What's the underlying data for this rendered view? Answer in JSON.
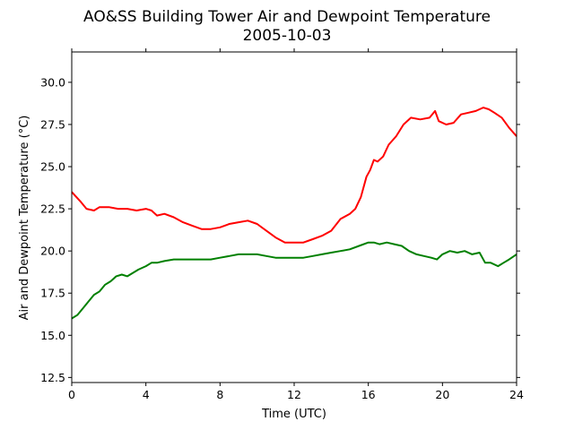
{
  "chart_data": {
    "type": "line",
    "title": "AO&SS Building Tower Air and Dewpoint Temperature",
    "subtitle": "2005-10-03",
    "xlabel": "Time (UTC)",
    "ylabel": "Air and Dewpoint Temperature (°C)",
    "xlim": [
      0,
      24
    ],
    "ylim": [
      12.2,
      31.8
    ],
    "x_ticks": [
      0,
      4,
      8,
      12,
      16,
      20,
      24
    ],
    "y_ticks": [
      12.5,
      15.0,
      17.5,
      20.0,
      22.5,
      25.0,
      27.5,
      30.0
    ],
    "grid": false,
    "legend": "none",
    "series": [
      {
        "color": "#ff0000",
        "x": [
          0,
          0.5,
          0.8,
          1.2,
          1.5,
          2,
          2.5,
          3,
          3.5,
          4,
          4.3,
          4.6,
          5,
          5.5,
          6,
          6.5,
          7,
          7.5,
          8,
          8.5,
          9,
          9.5,
          10,
          10.5,
          11,
          11.5,
          12,
          12.5,
          13,
          13.5,
          14,
          14.5,
          15,
          15.3,
          15.6,
          15.9,
          16.1,
          16.3,
          16.5,
          16.8,
          17.1,
          17.5,
          17.9,
          18.3,
          18.8,
          19.3,
          19.6,
          19.8,
          20.2,
          20.6,
          21,
          21.4,
          21.8,
          22.2,
          22.5,
          22.8,
          23.2,
          23.6,
          24
        ],
        "values": [
          23.5,
          22.9,
          22.5,
          22.4,
          22.6,
          22.6,
          22.5,
          22.5,
          22.4,
          22.5,
          22.4,
          22.1,
          22.2,
          22.0,
          21.7,
          21.5,
          21.3,
          21.3,
          21.4,
          21.6,
          21.7,
          21.8,
          21.6,
          21.2,
          20.8,
          20.5,
          20.5,
          20.5,
          20.7,
          20.9,
          21.2,
          21.9,
          22.2,
          22.5,
          23.2,
          24.4,
          24.8,
          25.4,
          25.3,
          25.6,
          26.3,
          26.8,
          27.5,
          27.9,
          27.8,
          27.9,
          28.3,
          27.7,
          27.5,
          27.6,
          28.1,
          28.2,
          28.3,
          28.5,
          28.4,
          28.2,
          27.9,
          27.3,
          26.8
        ]
      },
      {
        "color": "#008000",
        "x": [
          0,
          0.3,
          0.6,
          0.9,
          1.2,
          1.5,
          1.8,
          2.1,
          2.4,
          2.7,
          3,
          3.3,
          3.6,
          4,
          4.3,
          4.6,
          5,
          5.5,
          6,
          6.5,
          7,
          7.5,
          8,
          8.5,
          9,
          9.5,
          10,
          10.5,
          11,
          11.5,
          12,
          12.5,
          13,
          13.5,
          14,
          14.5,
          15,
          15.5,
          16,
          16.3,
          16.6,
          17,
          17.4,
          17.8,
          18.2,
          18.6,
          19,
          19.4,
          19.7,
          20,
          20.4,
          20.8,
          21.2,
          21.6,
          22,
          22.3,
          22.6,
          23,
          23.3,
          23.6,
          24
        ],
        "values": [
          16.0,
          16.2,
          16.6,
          17.0,
          17.4,
          17.6,
          18.0,
          18.2,
          18.5,
          18.6,
          18.5,
          18.7,
          18.9,
          19.1,
          19.3,
          19.3,
          19.4,
          19.5,
          19.5,
          19.5,
          19.5,
          19.5,
          19.6,
          19.7,
          19.8,
          19.8,
          19.8,
          19.7,
          19.6,
          19.6,
          19.6,
          19.6,
          19.7,
          19.8,
          19.9,
          20.0,
          20.1,
          20.3,
          20.5,
          20.5,
          20.4,
          20.5,
          20.4,
          20.3,
          20.0,
          19.8,
          19.7,
          19.6,
          19.5,
          19.8,
          20.0,
          19.9,
          20.0,
          19.8,
          19.9,
          19.3,
          19.3,
          19.1,
          19.3,
          19.5,
          19.8
        ]
      }
    ]
  }
}
